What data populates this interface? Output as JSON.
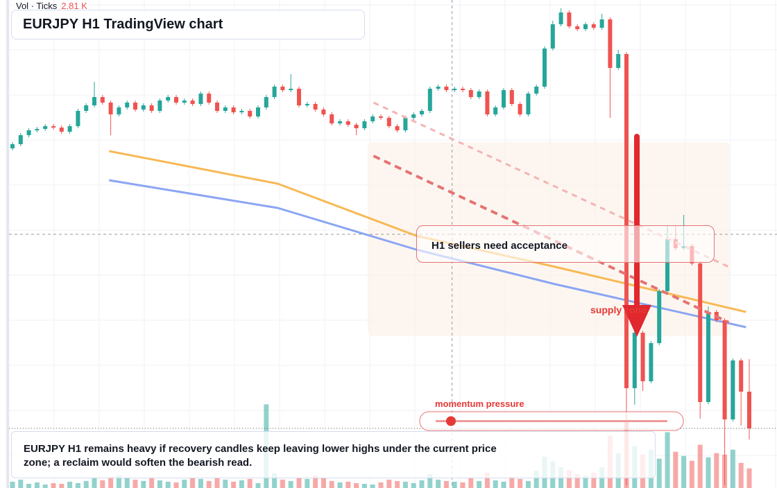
{
  "vol_header": "Vol · Ticks",
  "vol_value_label": "2.81 K",
  "chart_data": {
    "type": "candlestick",
    "title": "EURJPY H1 TradingView chart",
    "annotations": [
      "H1 sellers need acceptance",
      "supply zone",
      "momentum pressure"
    ],
    "description": "EURJPY H1 remains heavy if recovery candles keep leaving lower highs under the current price zone; a reclaim would soften the bearish read.",
    "up_color": "#26a69a",
    "down_color": "#ef5350",
    "ylim": [
      0,
      704
    ],
    "volume_ylim": [
      0,
      70
    ],
    "open": [
      490,
      496,
      509,
      516,
      518,
      522,
      520,
      514,
      522,
      544,
      552,
      564,
      556,
      539,
      549,
      556,
      546,
      552,
      544,
      559,
      564,
      556,
      559,
      554,
      569,
      556,
      544,
      549,
      542,
      544,
      536,
      549,
      564,
      579,
      574,
      576,
      552,
      554,
      546,
      539,
      526,
      529,
      524,
      519,
      529,
      536,
      534,
      522,
      516,
      534,
      539,
      544,
      576,
      579,
      574,
      576,
      574,
      564,
      572,
      539,
      549,
      574,
      554,
      539,
      569,
      579,
      634,
      669,
      686,
      666,
      662,
      669,
      664,
      676,
      606,
      626,
      144,
      224,
      154,
      209,
      284,
      359,
      346,
      349,
      324,
      124,
      254,
      242,
      99,
      184,
      139
    ],
    "high": [
      499,
      512,
      519,
      521,
      525,
      525,
      523,
      525,
      547,
      555,
      586,
      567,
      559,
      552,
      559,
      559,
      555,
      555,
      562,
      567,
      567,
      562,
      562,
      572,
      572,
      559,
      552,
      552,
      547,
      547,
      552,
      567,
      582,
      582,
      597,
      579,
      557,
      557,
      549,
      542,
      532,
      532,
      527,
      532,
      539,
      539,
      537,
      525,
      537,
      542,
      547,
      579,
      582,
      582,
      579,
      579,
      577,
      575,
      575,
      552,
      577,
      577,
      557,
      572,
      582,
      637,
      674,
      692,
      689,
      669,
      672,
      672,
      684,
      679,
      632,
      629,
      227,
      227,
      212,
      287,
      378,
      378,
      394,
      352,
      327,
      262,
      257,
      245,
      187,
      187,
      186
    ],
    "low": [
      487,
      493,
      506,
      513,
      515,
      517,
      511,
      511,
      519,
      541,
      549,
      553,
      509,
      536,
      546,
      543,
      543,
      541,
      541,
      556,
      553,
      553,
      551,
      551,
      553,
      541,
      541,
      539,
      539,
      533,
      533,
      546,
      561,
      571,
      571,
      549,
      549,
      543,
      536,
      523,
      523,
      521,
      509,
      516,
      526,
      531,
      519,
      513,
      513,
      531,
      536,
      541,
      573,
      571,
      571,
      571,
      561,
      561,
      536,
      536,
      546,
      551,
      536,
      536,
      566,
      576,
      631,
      666,
      663,
      659,
      659,
      661,
      661,
      534,
      603,
      4,
      120,
      140,
      151,
      206,
      281,
      343,
      343,
      321,
      100,
      121,
      239,
      4,
      96,
      90,
      70
    ],
    "close": [
      496,
      509,
      516,
      518,
      522,
      520,
      514,
      522,
      544,
      552,
      564,
      556,
      539,
      549,
      556,
      546,
      552,
      544,
      559,
      564,
      556,
      559,
      554,
      569,
      556,
      544,
      549,
      542,
      544,
      536,
      549,
      564,
      579,
      574,
      576,
      552,
      554,
      546,
      539,
      526,
      529,
      524,
      519,
      529,
      536,
      534,
      522,
      516,
      534,
      539,
      544,
      576,
      579,
      574,
      576,
      574,
      564,
      572,
      539,
      549,
      574,
      554,
      539,
      569,
      579,
      634,
      669,
      686,
      666,
      662,
      669,
      664,
      676,
      606,
      626,
      144,
      224,
      154,
      209,
      284,
      359,
      346,
      349,
      324,
      124,
      254,
      242,
      99,
      184,
      139,
      86
    ],
    "volume": [
      0.9,
      1.2,
      0.6,
      0.8,
      0.5,
      0.7,
      0.6,
      0.9,
      0.7,
      1.0,
      1.4,
      1.1,
      1.6,
      1.8,
      1.5,
      1.2,
      1.0,
      1.4,
      1.1,
      0.9,
      0.8,
      1.2,
      1.5,
      1.3,
      1.0,
      1.4,
      1.2,
      0.9,
      1.1,
      1.3,
      0.7,
      12.0,
      2.1,
      1.2,
      1.0,
      1.5,
      1.3,
      1.8,
      1.4,
      1.0,
      0.8,
      0.9,
      0.7,
      0.6,
      0.5,
      0.8,
      1.2,
      1.0,
      0.9,
      0.7,
      1.1,
      2.0,
      1.2,
      1.0,
      0.9,
      0.8,
      1.4,
      1.0,
      2.2,
      1.1,
      0.9,
      1.6,
      1.3,
      1.0,
      2.5,
      4.5,
      3.8,
      3.0,
      2.6,
      2.0,
      1.8,
      2.2,
      3.0,
      7.5,
      5.0,
      9.5,
      6.0,
      4.8,
      5.5,
      4.2,
      8.0,
      5.2,
      4.6,
      3.9,
      6.2,
      4.4,
      5.0,
      4.8,
      5.5,
      3.6,
      2.81
    ],
    "moving_averages": [
      {
        "color": "#f7b955",
        "x": [
          11.8,
          32.4,
          49.3,
          66.3,
          89.6
        ],
        "values": [
          486,
          439,
          364,
          319,
          254
        ]
      },
      {
        "color": "#8aa5f2",
        "x": [
          11.8,
          32.4,
          49.3,
          66.3,
          89.6
        ],
        "values": [
          444,
          404,
          344,
          294,
          232
        ]
      }
    ],
    "trendlines": [
      {
        "color": "#e57373",
        "x": [
          44.1,
          87.5
        ],
        "values": [
          479,
          239
        ]
      },
      {
        "color": "#f4b4b4",
        "x": [
          44.1,
          87.5
        ],
        "values": [
          556,
          319
        ]
      }
    ],
    "crosshair": {
      "x": 53.7,
      "y": 366
    }
  }
}
